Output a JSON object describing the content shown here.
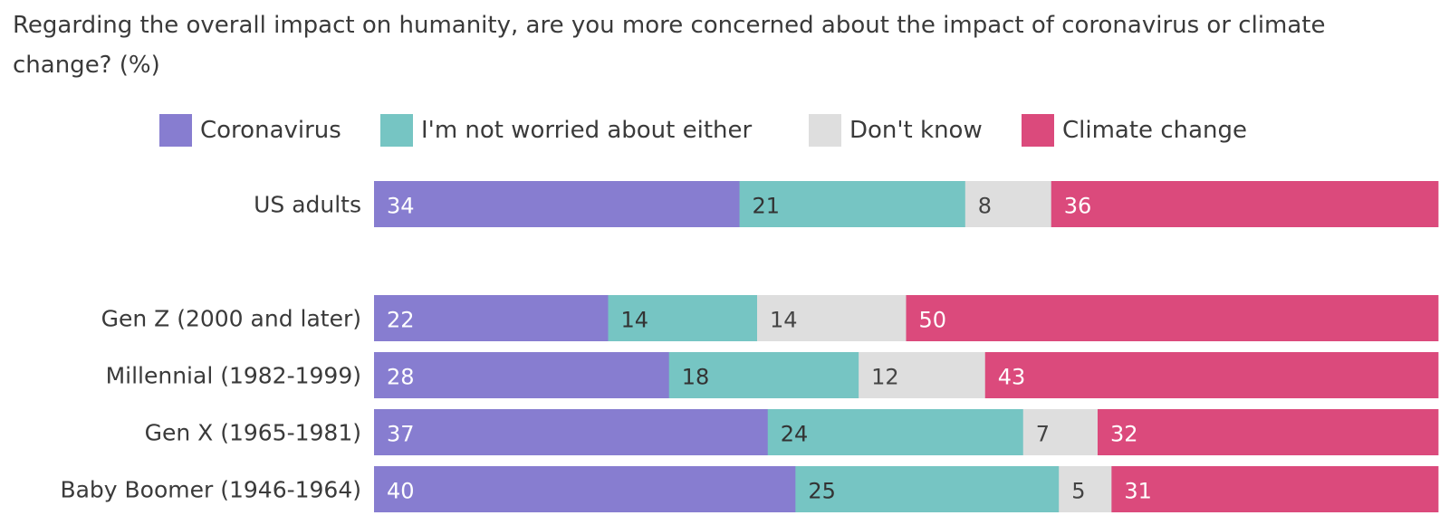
{
  "chart_data": {
    "type": "bar",
    "orientation": "horizontal",
    "stacked": true,
    "title": "Regarding the overall impact on humanity, are you more concerned about the impact of coronavirus or climate change? (%)",
    "categories": [
      "US adults",
      "Gen Z (2000 and later)",
      "Millennial (1982-1999)",
      "Gen X (1965-1981)",
      "Baby Boomer (1946-1964)"
    ],
    "series": [
      {
        "name": "Coronavirus",
        "color": "#877dd0",
        "label_color": "#ffffff",
        "values": [
          34,
          22,
          28,
          37,
          40
        ]
      },
      {
        "name": "I'm not worried about either",
        "color": "#76c5c3",
        "label_color": "#333333",
        "values": [
          21,
          14,
          18,
          24,
          25
        ]
      },
      {
        "name": "Don't know",
        "color": "#dedede",
        "label_color": "#444444",
        "values": [
          8,
          14,
          12,
          7,
          5
        ]
      },
      {
        "name": "Climate change",
        "color": "#db4a7c",
        "label_color": "#ffffff",
        "values": [
          36,
          50,
          43,
          32,
          31
        ]
      }
    ],
    "xlabel": "",
    "ylabel": "",
    "legend_position": "top",
    "grid": false
  }
}
